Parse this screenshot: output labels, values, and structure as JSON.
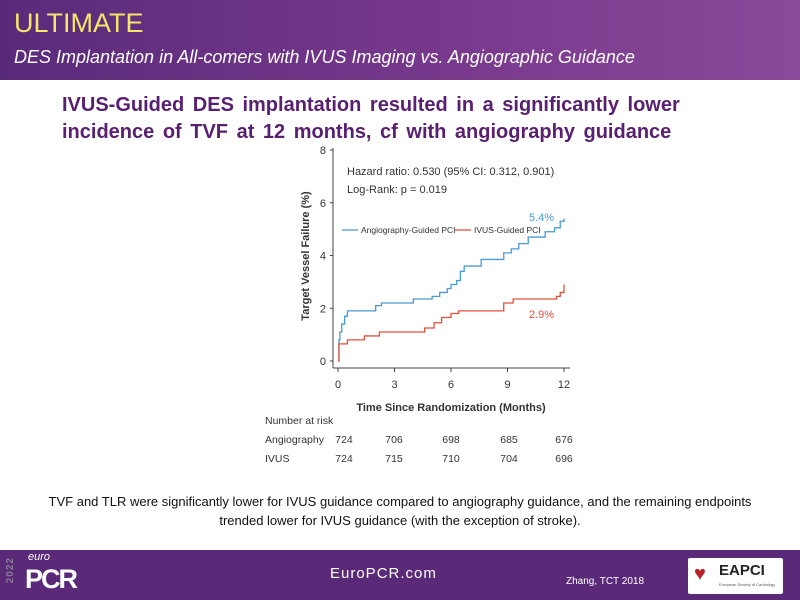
{
  "header": {
    "title": "ULTIMATE",
    "subtitle": "DES Implantation  in All-comers with IVUS Imaging vs. Angiographic Guidance"
  },
  "headline": "IVUS-Guided  DES implantation  resulted in a significantly  lower incidence  of TVF at 12 months,  cf with angiography  guidance",
  "chart_data": {
    "type": "line",
    "step": true,
    "xlabel": "Time Since Randomization (Months)",
    "ylabel": "Target Vessel Failure (%)",
    "xlim": [
      0,
      12
    ],
    "ylim": [
      0,
      8
    ],
    "xticks": [
      "0",
      "3",
      "6",
      "9",
      "12"
    ],
    "yticks": [
      "0",
      "2",
      "4",
      "6",
      "8"
    ],
    "grid": false,
    "legend_placement": "center-left",
    "annotations": [
      "Hazard ratio: 0.530 (95% CI: 0.312, 0.901)",
      "Log-Rank: p = 0.019"
    ],
    "series": [
      {
        "name": "Angiography-Guided PCI",
        "color": "#4a9ad4",
        "end_label": "5.4%",
        "x": [
          0,
          0.05,
          0.1,
          0.2,
          0.35,
          0.5,
          2,
          2.3,
          4,
          5,
          5.4,
          5.8,
          6,
          6.3,
          6.5,
          6.7,
          7.6,
          8.8,
          9.2,
          9.6,
          10.1,
          11,
          11.5,
          11.8,
          12
        ],
        "y": [
          0,
          0.8,
          1.1,
          1.4,
          1.7,
          1.9,
          2.1,
          2.2,
          2.35,
          2.45,
          2.6,
          2.75,
          2.9,
          3.05,
          3.4,
          3.6,
          3.85,
          4.1,
          4.25,
          4.45,
          4.7,
          4.9,
          5.05,
          5.3,
          5.4
        ]
      },
      {
        "name": "IVUS-Guided PCI",
        "color": "#e2503c",
        "end_label": "2.9%",
        "x": [
          0,
          0.05,
          0.5,
          1.4,
          2.2,
          4.6,
          5.1,
          5.5,
          6,
          6.4,
          8.8,
          9.3,
          11.6,
          11.8,
          12
        ],
        "y": [
          0,
          0.65,
          0.8,
          0.95,
          1.1,
          1.25,
          1.45,
          1.65,
          1.8,
          1.9,
          2.2,
          2.35,
          2.45,
          2.6,
          2.9
        ]
      }
    ],
    "risk_table": {
      "title": "Number at risk",
      "rows": [
        {
          "label": "Angiography",
          "values": [
            "724",
            "706",
            "698",
            "685",
            "676"
          ]
        },
        {
          "label": "IVUS",
          "values": [
            "724",
            "715",
            "710",
            "704",
            "696"
          ]
        }
      ]
    }
  },
  "caption": "TVF and TLR were significantly lower for IVUS guidance compared to angiography guidance, and the remaining endpoints trended lower for IVUS guidance (with the exception of stroke).",
  "footer": {
    "logo_year": "2022",
    "logo_euro": "euro",
    "logo_pcr": "PCR",
    "site": "EuroPCR.com",
    "reference": "Zhang, TCT 2018",
    "partner_logo": "EAPCI",
    "partner_sub": "European Society of Cardiology"
  },
  "colors": {
    "header": "#6a3085",
    "title": "#f5e66a",
    "headline": "#5a2070",
    "footer": "#5a2a78"
  }
}
